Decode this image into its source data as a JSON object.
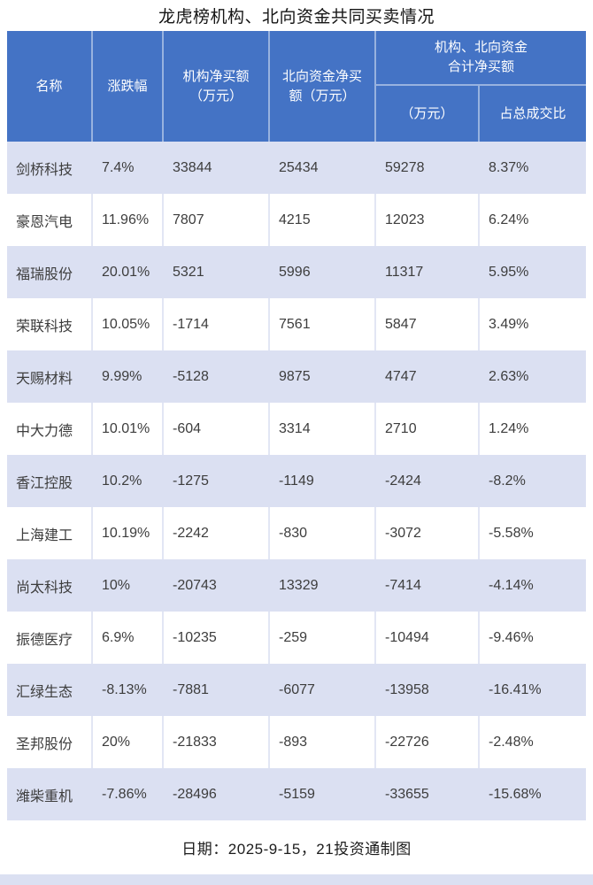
{
  "title": "龙虎榜机构、北向资金共同买卖情况",
  "colors": {
    "header_bg": "#4473C5",
    "band_bg": "#DBE0F2",
    "header_text": "#FFFFFF",
    "body_text": "#3D3D3D",
    "white_row_divider": "#E2E6F4"
  },
  "table": {
    "headers": {
      "name": "名称",
      "change": "涨跌幅",
      "inst_net": "机构净买额\n（万元）",
      "north_net": "北向资金净买\n额（万元）",
      "combined_group": "机构、北向资金\n合计净买额",
      "combined_amount": "（万元）",
      "combined_ratio": "占总成交比"
    }
  },
  "chart_data": {
    "type": "table",
    "title": "龙虎榜机构、北向资金共同买卖情况",
    "columns": [
      "名称",
      "涨跌幅",
      "机构净买额（万元）",
      "北向资金净买额（万元）",
      "机构、北向资金合计净买额（万元）",
      "占总成交比"
    ],
    "rows": [
      [
        "剑桥科技",
        "7.4%",
        33844,
        25434,
        59278,
        "8.37%"
      ],
      [
        "豪恩汽电",
        "11.96%",
        7807,
        4215,
        12023,
        "6.24%"
      ],
      [
        "福瑞股份",
        "20.01%",
        5321,
        5996,
        11317,
        "5.95%"
      ],
      [
        "荣联科技",
        "10.05%",
        -1714,
        7561,
        5847,
        "3.49%"
      ],
      [
        "天赐材料",
        "9.99%",
        -5128,
        9875,
        4747,
        "2.63%"
      ],
      [
        "中大力德",
        "10.01%",
        -604,
        3314,
        2710,
        "1.24%"
      ],
      [
        "香江控股",
        "10.2%",
        -1275,
        -1149,
        -2424,
        "-8.2%"
      ],
      [
        "上海建工",
        "10.19%",
        -2242,
        -830,
        -3072,
        "-5.58%"
      ],
      [
        "尚太科技",
        "10%",
        -20743,
        13329,
        -7414,
        "-4.14%"
      ],
      [
        "振德医疗",
        "6.9%",
        -10235,
        -259,
        -10494,
        "-9.46%"
      ],
      [
        "汇绿生态",
        "-8.13%",
        -7881,
        -6077,
        -13958,
        "-16.41%"
      ],
      [
        "圣邦股份",
        "20%",
        -21833,
        -893,
        -22726,
        "-2.48%"
      ],
      [
        "潍柴重机",
        "-7.86%",
        -28496,
        -5159,
        -33655,
        "-15.68%"
      ]
    ],
    "note": "日期：2025-9-15，21投资通制图"
  },
  "footer": {
    "text": "日期：2025-9-15，21投资通制图"
  }
}
